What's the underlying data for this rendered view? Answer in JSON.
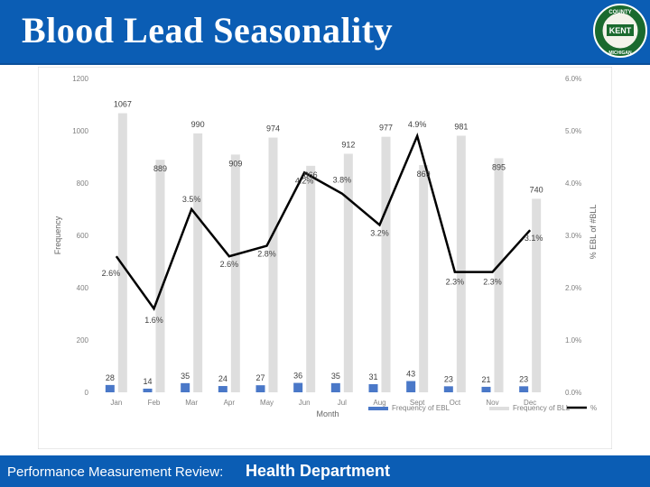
{
  "header": {
    "title": "Blood Lead Seasonality",
    "seal_top_text": "COUNTY",
    "seal_center_text": "KENT",
    "seal_bottom_text": "MICHIGAN"
  },
  "footer": {
    "left_text": "Performance Measurement Review:",
    "right_text": "Health Department"
  },
  "colors": {
    "header_bg": "#0b5db4",
    "ebl_bar": "#4a78c8",
    "bll_bar": "#dedede",
    "pct_line": "#000000"
  },
  "chart_data": {
    "type": "bar",
    "categories": [
      "Jan",
      "Feb",
      "Mar",
      "Apr",
      "May",
      "Jun",
      "Jul",
      "Aug",
      "Sept",
      "Oct",
      "Nov",
      "Dec"
    ],
    "series": [
      {
        "name": "Frequency of EBL",
        "type": "bar",
        "axis": "left",
        "values": [
          28,
          14,
          35,
          24,
          27,
          36,
          35,
          31,
          43,
          23,
          21,
          23
        ]
      },
      {
        "name": "Frequency of BLL",
        "type": "bar",
        "axis": "left",
        "values": [
          1067,
          889,
          990,
          909,
          974,
          866,
          912,
          977,
          869,
          981,
          895,
          740
        ]
      },
      {
        "name": "%",
        "type": "line",
        "axis": "right",
        "values": [
          2.6,
          1.6,
          3.5,
          2.6,
          2.8,
          4.2,
          3.8,
          3.2,
          4.9,
          2.3,
          2.3,
          3.1
        ]
      }
    ],
    "bll_labels": [
      "1067",
      "889",
      "990",
      "909",
      "974",
      "866",
      "912",
      "977",
      "869",
      "981",
      "895",
      "740"
    ],
    "pct_labels": [
      "2.6%",
      "1.6%",
      "3.5%",
      "2.6%",
      "2.8%",
      "4.2%",
      "3.8%",
      "3.2%",
      "4.9%",
      "2.3%",
      "2.3%",
      "3.1%"
    ],
    "xlabel": "Month",
    "ylabel": "Frequency",
    "y2label": "% EBL of #BLL",
    "ylim": [
      0,
      1200
    ],
    "y2lim": [
      0,
      6
    ],
    "yticks": [
      "0",
      "200",
      "400",
      "600",
      "800",
      "1000",
      "1200"
    ],
    "y2ticks": [
      "0.0%",
      "1.0%",
      "2.0%",
      "3.0%",
      "4.0%",
      "5.0%",
      "6.0%"
    ],
    "legend": {
      "placement": "bottom-right"
    },
    "grid": false
  }
}
